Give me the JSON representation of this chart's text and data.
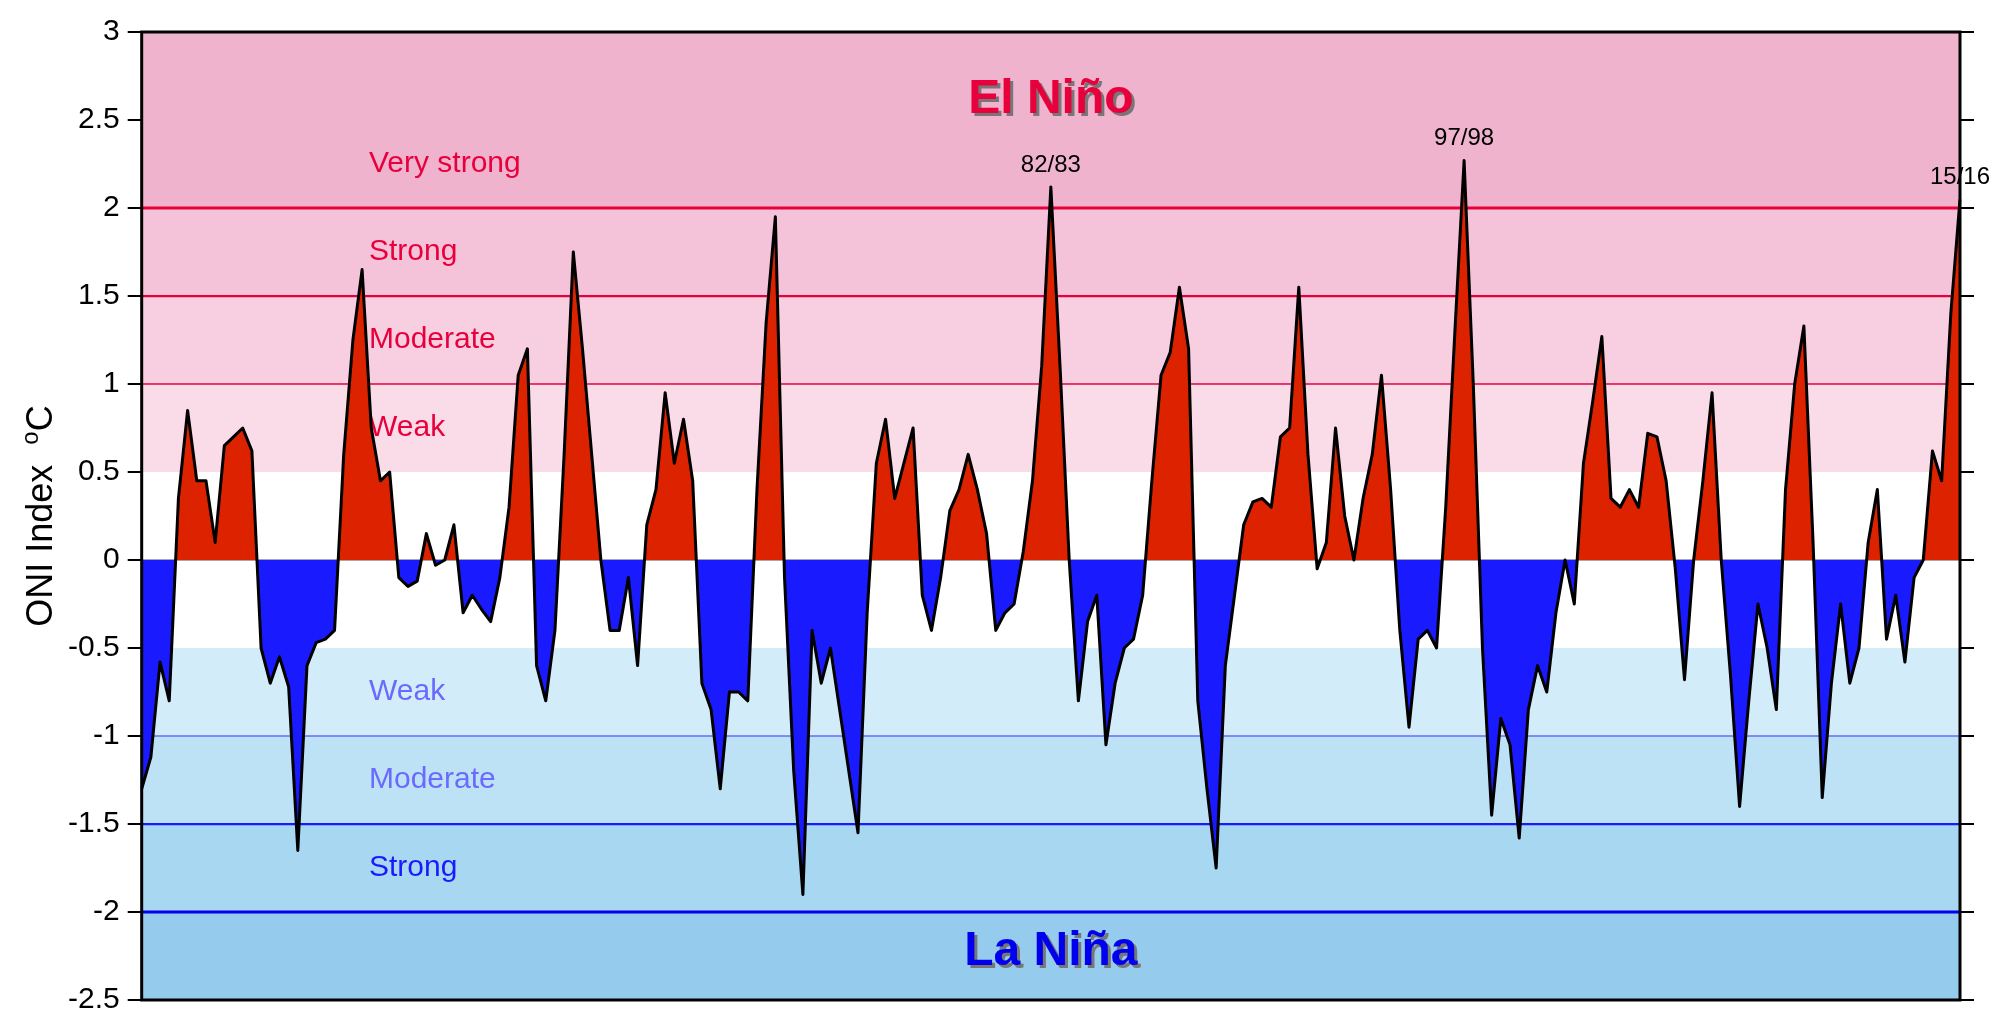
{
  "chart_data": {
    "type": "area",
    "ylabel": "ONI Index  $^{o}$C",
    "tick_labels": "y",
    "grid": false,
    "legend": false,
    "categories": [
      null,
      null,
      null,
      null,
      null,
      null,
      null,
      null,
      null,
      null,
      null,
      null,
      null,
      null,
      null,
      null,
      null,
      null,
      null,
      null,
      null,
      null,
      null,
      null,
      null,
      null,
      null,
      null,
      null,
      null,
      null,
      null,
      null,
      null,
      null,
      null,
      null,
      null,
      null,
      null,
      null,
      null,
      null,
      null,
      null,
      null,
      null,
      null,
      null,
      null,
      null,
      null,
      null,
      null,
      null,
      null,
      null,
      null,
      null,
      null,
      null,
      null,
      null,
      null,
      null,
      null,
      null,
      null,
      null,
      null,
      null,
      null,
      null,
      null,
      null,
      null,
      null,
      null,
      null,
      null,
      null,
      null,
      null,
      null,
      null,
      null,
      null,
      null,
      null,
      null,
      null,
      null,
      null,
      null,
      null,
      null,
      null,
      null,
      null,
      null,
      null,
      null,
      null,
      null,
      null,
      null,
      null,
      null,
      null,
      null,
      null,
      null,
      null,
      null,
      null,
      null,
      null,
      null,
      null,
      null,
      null,
      null,
      null,
      null,
      null,
      null,
      null,
      null,
      null,
      null,
      null,
      null,
      null,
      null,
      null,
      null,
      null,
      null,
      null,
      null,
      null,
      null,
      null,
      null,
      null,
      null,
      null,
      null,
      null,
      null,
      null,
      null,
      null,
      null,
      null,
      null,
      null,
      null,
      null,
      null,
      null,
      null,
      null,
      null,
      null,
      null,
      null,
      null,
      null,
      null,
      null,
      null,
      null,
      null,
      null,
      null,
      null,
      null,
      null,
      null,
      null,
      null,
      null,
      null,
      null,
      null,
      null,
      null,
      null,
      null,
      null,
      null,
      null,
      null,
      null,
      null,
      null,
      null,
      null
    ],
    "series": [
      {
        "color": "#000000",
        "values": [
          -1.3,
          -1.12,
          -0.58,
          -0.8,
          0.35,
          0.85,
          0.45,
          0.45,
          0.1,
          0.65,
          0.7,
          0.75,
          0.62,
          -0.5,
          -0.7,
          -0.55,
          -0.72,
          -1.65,
          -0.6,
          -0.47,
          -0.45,
          -0.4,
          0.6,
          1.25,
          1.65,
          0.75,
          0.45,
          0.5,
          -0.1,
          -0.15,
          -0.12,
          0.15,
          -0.03,
          0.0,
          0.2,
          -0.3,
          -0.2,
          -0.28,
          -0.35,
          -0.1,
          0.3,
          1.05,
          1.2,
          -0.6,
          -0.8,
          -0.4,
          0.6,
          1.75,
          1.2,
          0.6,
          0.0,
          -0.4,
          -0.4,
          -0.1,
          -0.6,
          0.2,
          0.4,
          0.95,
          0.55,
          0.8,
          0.45,
          -0.7,
          -0.85,
          -1.3,
          -0.75,
          -0.75,
          -0.8,
          0.4,
          1.35,
          1.95,
          -0.1,
          -1.2,
          -1.9,
          -0.4,
          -0.7,
          -0.5,
          -0.85,
          -1.2,
          -1.55,
          -0.3,
          0.55,
          0.8,
          0.35,
          0.55,
          0.75,
          -0.2,
          -0.4,
          -0.1,
          0.28,
          0.4,
          0.6,
          0.4,
          0.15,
          -0.4,
          -0.3,
          -0.25,
          0.05,
          0.45,
          1.1,
          2.12,
          1.1,
          0.0,
          -0.8,
          -0.35,
          -0.2,
          -1.05,
          -0.7,
          -0.5,
          -0.45,
          -0.2,
          0.45,
          1.05,
          1.18,
          1.55,
          1.2,
          -0.8,
          -1.3,
          -1.75,
          -0.6,
          -0.2,
          0.2,
          0.33,
          0.35,
          0.3,
          0.7,
          0.75,
          1.55,
          0.6,
          -0.05,
          0.1,
          0.75,
          0.25,
          0.0,
          0.35,
          0.6,
          1.05,
          0.4,
          -0.4,
          -0.95,
          -0.45,
          -0.4,
          -0.5,
          0.3,
          1.3,
          2.27,
          1.0,
          -0.5,
          -1.45,
          -0.9,
          -1.05,
          -1.58,
          -0.85,
          -0.6,
          -0.75,
          -0.3,
          0.0,
          -0.25,
          0.55,
          0.9,
          1.27,
          0.35,
          0.3,
          0.4,
          0.3,
          0.72,
          0.7,
          0.45,
          -0.05,
          -0.68,
          0.0,
          0.45,
          0.95,
          0.0,
          -0.65,
          -1.4,
          -0.8,
          -0.25,
          -0.5,
          -0.85,
          0.4,
          1.0,
          1.33,
          0.1,
          -1.35,
          -0.7,
          -0.25,
          -0.7,
          -0.5,
          0.1,
          0.4,
          -0.45,
          -0.2,
          -0.58,
          -0.1,
          0.0,
          0.62,
          0.45,
          1.4,
          2.05
        ],
        "colors": [
          "#1a1aff",
          "#1a1aff",
          "#1a1aff",
          "#1a1aff",
          "#dd2200",
          "#dd2200",
          "#dd2200",
          "#dd2200",
          "#dd2200",
          "#dd2200",
          "#dd2200",
          "#dd2200",
          "#dd2200",
          "#1a1aff",
          "#1a1aff",
          "#1a1aff",
          "#1a1aff",
          "#1a1aff",
          "#1a1aff",
          "#1a1aff",
          "#1a1aff",
          "#1a1aff",
          "#dd2200",
          "#dd2200",
          "#dd2200",
          "#dd2200",
          "#dd2200",
          "#dd2200",
          "#1a1aff",
          "#1a1aff",
          "#1a1aff",
          "#dd2200",
          "#1a1aff",
          "#1a1aff",
          "#dd2200",
          "#1a1aff",
          "#1a1aff",
          "#1a1aff",
          "#1a1aff",
          "#1a1aff",
          "#dd2200",
          "#dd2200",
          "#dd2200",
          "#1a1aff",
          "#1a1aff",
          "#1a1aff",
          "#dd2200",
          "#dd2200",
          "#dd2200",
          "#dd2200",
          "#1a1aff",
          "#1a1aff",
          "#1a1aff",
          "#1a1aff",
          "#1a1aff",
          "#dd2200",
          "#dd2200",
          "#dd2200",
          "#dd2200",
          "#dd2200",
          "#dd2200",
          "#1a1aff",
          "#1a1aff",
          "#1a1aff",
          "#1a1aff",
          "#1a1aff",
          "#1a1aff",
          "#dd2200",
          "#dd2200",
          "#dd2200",
          "#1a1aff",
          "#1a1aff",
          "#1a1aff",
          "#1a1aff",
          "#1a1aff",
          "#1a1aff",
          "#1a1aff",
          "#1a1aff",
          "#1a1aff",
          "#1a1aff",
          "#dd2200",
          "#dd2200",
          "#dd2200",
          "#dd2200",
          "#dd2200",
          "#1a1aff",
          "#1a1aff",
          "#1a1aff",
          "#dd2200",
          "#dd2200",
          "#dd2200",
          "#dd2200",
          "#dd2200",
          "#1a1aff",
          "#1a1aff",
          "#1a1aff",
          "#dd2200",
          "#dd2200",
          "#dd2200",
          "#dd2200",
          "#dd2200",
          "#1a1aff",
          "#1a1aff",
          "#1a1aff",
          "#1a1aff",
          "#1a1aff",
          "#1a1aff",
          "#1a1aff",
          "#1a1aff",
          "#1a1aff",
          "#dd2200",
          "#dd2200",
          "#dd2200",
          "#dd2200",
          "#dd2200",
          "#1a1aff",
          "#1a1aff",
          "#1a1aff",
          "#1a1aff",
          "#1a1aff",
          "#dd2200",
          "#dd2200",
          "#dd2200",
          "#dd2200",
          "#dd2200",
          "#dd2200",
          "#dd2200",
          "#dd2200",
          "#1a1aff",
          "#dd2200",
          "#dd2200",
          "#dd2200",
          "#1a1aff",
          "#dd2200",
          "#dd2200",
          "#dd2200",
          "#dd2200",
          "#1a1aff",
          "#1a1aff",
          "#1a1aff",
          "#1a1aff",
          "#1a1aff",
          "#dd2200",
          "#dd2200",
          "#dd2200",
          "#dd2200",
          "#1a1aff",
          "#1a1aff",
          "#1a1aff",
          "#1a1aff",
          "#1a1aff",
          "#1a1aff",
          "#1a1aff",
          "#1a1aff",
          "#1a1aff",
          "#1a1aff",
          "#1a1aff",
          "#dd2200",
          "#dd2200",
          "#dd2200",
          "#dd2200",
          "#dd2200",
          "#dd2200",
          "#dd2200",
          "#dd2200",
          "#dd2200",
          "#dd2200",
          "#1a1aff",
          "#1a1aff",
          "#1a1aff",
          "#dd2200",
          "#dd2200",
          "#1a1aff",
          "#1a1aff",
          "#1a1aff",
          "#1a1aff",
          "#1a1aff",
          "#1a1aff",
          "#1a1aff",
          "#dd2200",
          "#dd2200",
          "#dd2200",
          "#dd2200",
          "#1a1aff",
          "#1a1aff",
          "#1a1aff",
          "#1a1aff",
          "#1a1aff",
          "#dd2200",
          "#dd2200",
          "#1a1aff",
          "#1a1aff",
          "#1a1aff",
          "#1a1aff",
          "#1a1aff",
          "#dd2200",
          "#dd2200",
          "#dd2200",
          "#dd2200"
        ]
      }
    ],
    "ylim": [
      -2.5,
      3
    ],
    "yticks": [
      -2.5,
      -2,
      -1.5,
      -1,
      -0.5,
      0,
      0.5,
      1,
      1.5,
      2,
      2.5,
      3
    ],
    "bands": [
      {
        "axis": "y",
        "from": 0.5,
        "to": 1,
        "label": "Weak",
        "color": "#fadbe8"
      },
      {
        "axis": "y",
        "from": 1,
        "to": 1.5,
        "label": "Moderate",
        "color": "#f7cfe1"
      },
      {
        "axis": "y",
        "from": 1.5,
        "to": 2,
        "label": "Strong",
        "color": "#f4c3d9"
      },
      {
        "axis": "y",
        "from": 2,
        "to": 3,
        "label": "Very strong",
        "color": "#f0b3cd"
      },
      {
        "axis": "y",
        "from": -1,
        "to": -0.5,
        "label": "Weak",
        "color": "#d2ecf9"
      },
      {
        "axis": "y",
        "from": -1.5,
        "to": -1,
        "label": "Moderate",
        "color": "#bde2f6"
      },
      {
        "axis": "y",
        "from": -2,
        "to": -1.5,
        "label": "Strong",
        "color": "#a8d7f2"
      },
      {
        "axis": "y",
        "from": -2.5,
        "to": -2,
        "color": "#95cced"
      }
    ],
    "ref_lines": [
      {
        "axis": "y",
        "value": 2,
        "color": "#e8003c"
      },
      {
        "axis": "y",
        "value": 1.5,
        "color": "#e8003c"
      },
      {
        "axis": "y",
        "value": 1,
        "color": "#e8003c"
      },
      {
        "axis": "y",
        "value": 0,
        "color": "#888888"
      },
      {
        "axis": "y",
        "value": -1,
        "color": "#6a6aff"
      },
      {
        "axis": "y",
        "value": -1.5,
        "color": "#1a1aff"
      },
      {
        "axis": "y",
        "value": -2,
        "color": "#0000ee"
      }
    ],
    "annotations": [
      "El Niño",
      "La Niña",
      {
        "text": "82/83",
        "y": 2.12
      },
      {
        "text": "97/98",
        "y": 2.27
      },
      {
        "text": "15/16",
        "y": 2.05
      }
    ]
  }
}
